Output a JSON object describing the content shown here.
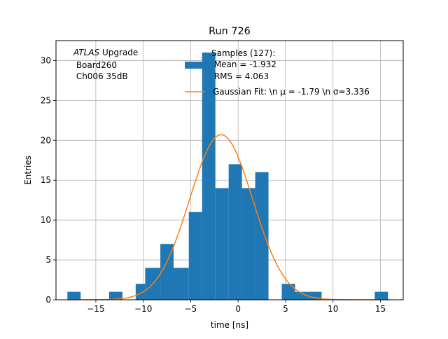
{
  "chart_data": {
    "type": "bar",
    "title": "Run 726",
    "xlabel": "time [ns]",
    "ylabel": "Entries",
    "xlim": [
      -19.2,
      17.4
    ],
    "ylim": [
      0,
      32.5
    ],
    "grid": true,
    "x_ticks": [
      {
        "value": -15,
        "label": "−15"
      },
      {
        "value": -10,
        "label": "−10"
      },
      {
        "value": -5,
        "label": "−5"
      },
      {
        "value": 0,
        "label": "0"
      },
      {
        "value": 5,
        "label": "5"
      },
      {
        "value": 10,
        "label": "10"
      },
      {
        "value": 15,
        "label": "15"
      }
    ],
    "y_ticks": [
      {
        "value": 0,
        "label": "0"
      },
      {
        "value": 5,
        "label": "5"
      },
      {
        "value": 10,
        "label": "10"
      },
      {
        "value": 15,
        "label": "15"
      },
      {
        "value": 20,
        "label": "20"
      },
      {
        "value": 25,
        "label": "25"
      },
      {
        "value": 30,
        "label": "30"
      }
    ],
    "histogram": {
      "color": "#1f77b4",
      "bins": [
        {
          "x0": -18.0,
          "x1": -16.6,
          "count": 1
        },
        {
          "x0": -16.6,
          "x1": -15.2,
          "count": 0
        },
        {
          "x0": -15.2,
          "x1": -13.6,
          "count": 0
        },
        {
          "x0": -13.6,
          "x1": -12.2,
          "count": 1
        },
        {
          "x0": -12.2,
          "x1": -10.8,
          "count": 0
        },
        {
          "x0": -10.8,
          "x1": -9.8,
          "count": 2
        },
        {
          "x0": -9.8,
          "x1": -8.2,
          "count": 4
        },
        {
          "x0": -8.2,
          "x1": -6.8,
          "count": 7
        },
        {
          "x0": -6.8,
          "x1": -5.2,
          "count": 4
        },
        {
          "x0": -5.2,
          "x1": -3.8,
          "count": 11
        },
        {
          "x0": -3.8,
          "x1": -2.4,
          "count": 31
        },
        {
          "x0": -2.4,
          "x1": -1.0,
          "count": 14
        },
        {
          "x0": -1.0,
          "x1": 0.4,
          "count": 17
        },
        {
          "x0": 0.4,
          "x1": 1.8,
          "count": 14
        },
        {
          "x0": 1.8,
          "x1": 3.2,
          "count": 16
        },
        {
          "x0": 3.2,
          "x1": 4.6,
          "count": 0
        },
        {
          "x0": 4.6,
          "x1": 6.0,
          "count": 2
        },
        {
          "x0": 6.0,
          "x1": 7.4,
          "count": 1
        },
        {
          "x0": 7.4,
          "x1": 8.8,
          "count": 1
        },
        {
          "x0": 8.8,
          "x1": 14.4,
          "count": 0
        },
        {
          "x0": 14.4,
          "x1": 15.8,
          "count": 1
        }
      ]
    },
    "fit": {
      "color": "#ff7f0e",
      "mu": -1.79,
      "sigma": 3.336,
      "amplitude": 20.7,
      "x_range": [
        -18,
        16
      ]
    },
    "legend": {
      "placement": "top-right",
      "hist_label_lines": [
        "Samples (127):",
        " Mean = -1.932",
        " RMS = 4.063"
      ],
      "fit_label": "Gaussian Fit: \\n μ = -1.79 \\n σ=3.336"
    },
    "annotation": {
      "placement": "top-left",
      "italic": "ATLAS",
      "rest": " Upgrade",
      "lines": [
        " Board260",
        " Ch006 35dB"
      ]
    }
  }
}
